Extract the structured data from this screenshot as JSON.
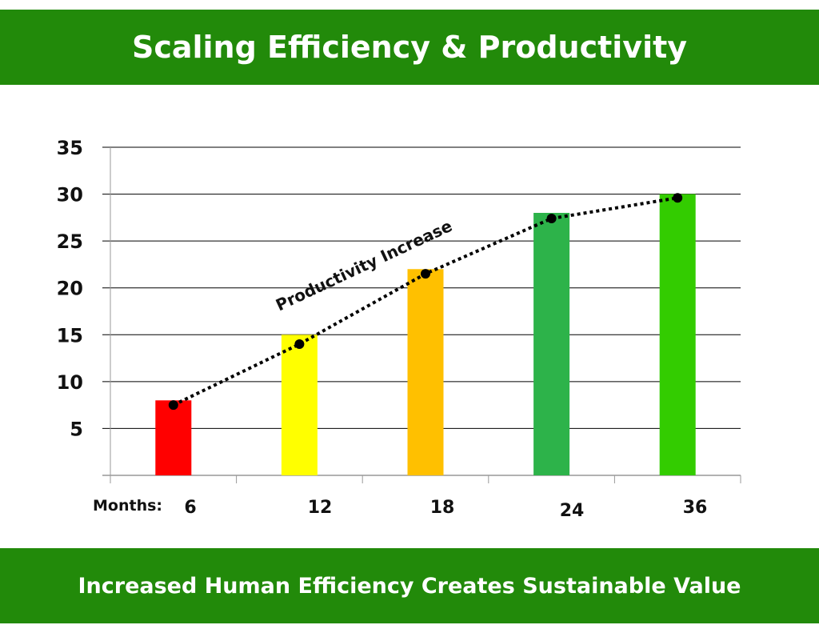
{
  "header": {
    "title": "Scaling Efficiency & Productivity"
  },
  "footer": {
    "caption": "Increased Human Efficiency Creates Sustainable Value"
  },
  "chart_data": {
    "type": "bar",
    "title": "Scaling Efficiency & Productivity",
    "xlabel": "Months:",
    "ylabel": "",
    "categories": [
      "6",
      "12",
      "18",
      "24",
      "36"
    ],
    "values": [
      8,
      15,
      22,
      28,
      30
    ],
    "bar_colors": [
      "#ff0000",
      "#ffff00",
      "#ffc000",
      "#2db34a",
      "#33cc00"
    ],
    "trend": {
      "label": "Productivity Increase",
      "values": [
        7.5,
        14,
        21.5,
        27.4,
        29.6
      ],
      "style": "dotted",
      "color": "#000000"
    },
    "ylim": [
      0,
      35
    ],
    "yticks": [
      5,
      10,
      15,
      20,
      25,
      30,
      35
    ],
    "grid": true
  }
}
